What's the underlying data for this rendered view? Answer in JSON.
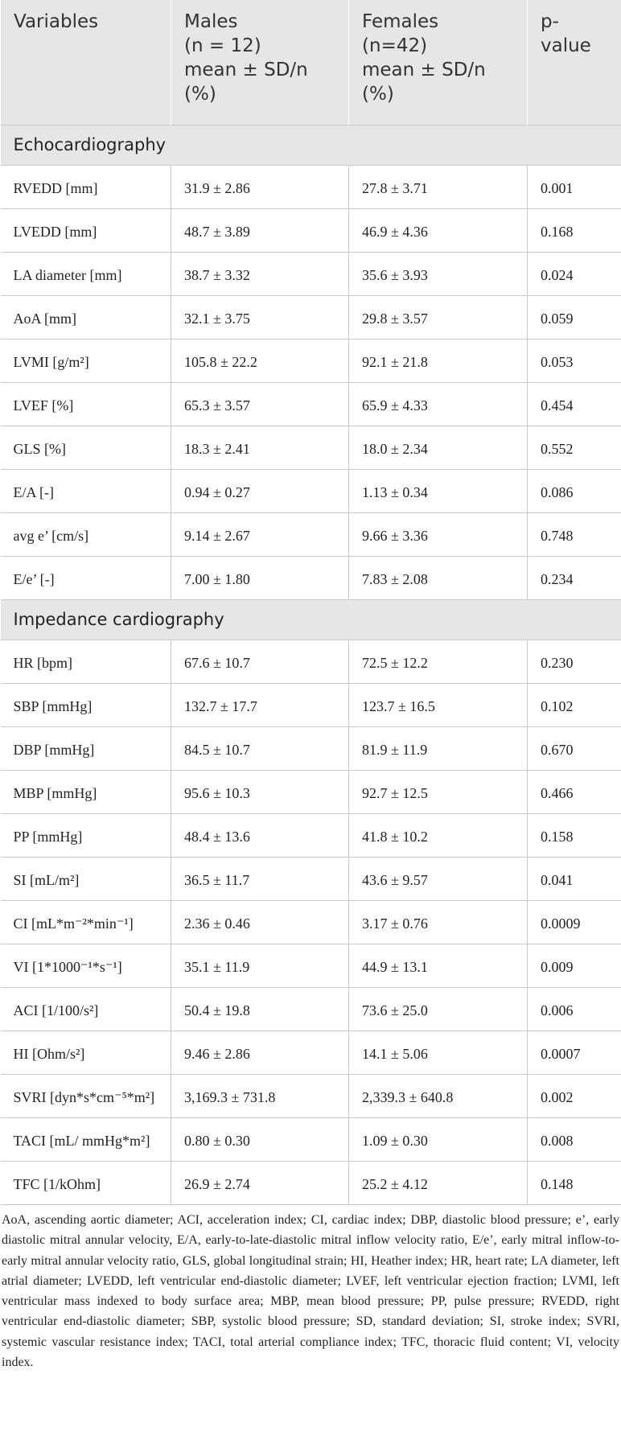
{
  "table": {
    "header": [
      [
        "Variables"
      ],
      [
        "Males",
        "(n = 12)",
        "mean ± SD/n",
        "(%)"
      ],
      [
        "Females",
        "(n=42)",
        "mean ± SD/n",
        "(%)"
      ],
      [
        "p-",
        "value"
      ]
    ],
    "sections": [
      {
        "title": "Echocardiography",
        "rows": [
          [
            "RVEDD [mm]",
            "31.9 ± 2.86",
            "27.8 ± 3.71",
            "0.001"
          ],
          [
            "LVEDD [mm]",
            "48.7 ± 3.89",
            "46.9 ± 4.36",
            "0.168"
          ],
          [
            "LA diameter [mm]",
            "38.7 ± 3.32",
            "35.6 ± 3.93",
            "0.024"
          ],
          [
            "AoA [mm]",
            "32.1 ± 3.75",
            "29.8 ± 3.57",
            "0.059"
          ],
          [
            "LVMI [g/m²]",
            "105.8 ± 22.2",
            "92.1 ± 21.8",
            "0.053"
          ],
          [
            "LVEF [%]",
            "65.3 ± 3.57",
            "65.9 ± 4.33",
            "0.454"
          ],
          [
            "GLS [%]",
            "18.3 ± 2.41",
            "18.0 ± 2.34",
            "0.552"
          ],
          [
            "E/A [-]",
            "0.94 ± 0.27",
            "1.13 ± 0.34",
            "0.086"
          ],
          [
            "avg e’ [cm/s]",
            "9.14 ± 2.67",
            "9.66 ± 3.36",
            "0.748"
          ],
          [
            "E/e’ [-]",
            "7.00 ± 1.80",
            "7.83 ± 2.08",
            "0.234"
          ]
        ]
      },
      {
        "title": "Impedance cardiography",
        "rows": [
          [
            "HR [bpm]",
            "67.6 ± 10.7",
            "72.5 ± 12.2",
            "0.230"
          ],
          [
            "SBP [mmHg]",
            "132.7 ± 17.7",
            "123.7 ± 16.5",
            "0.102"
          ],
          [
            "DBP [mmHg]",
            "84.5 ± 10.7",
            "81.9 ± 11.9",
            "0.670"
          ],
          [
            "MBP [mmHg]",
            "95.6 ± 10.3",
            "92.7 ± 12.5",
            "0.466"
          ],
          [
            "PP [mmHg]",
            "48.4 ± 13.6",
            "41.8 ± 10.2",
            "0.158"
          ],
          [
            "SI [mL/m²]",
            "36.5 ± 11.7",
            "43.6 ± 9.57",
            "0.041"
          ],
          [
            "CI [mL*m⁻²*min⁻¹]",
            "2.36 ± 0.46",
            "3.17 ± 0.76",
            "0.0009"
          ],
          [
            "VI [1*1000⁻¹*s⁻¹]",
            "35.1 ± 11.9",
            "44.9 ± 13.1",
            "0.009"
          ],
          [
            "ACI [1/100/s²]",
            "50.4 ± 19.8",
            "73.6 ± 25.0",
            "0.006"
          ],
          [
            "HI [Ohm/s²]",
            "9.46 ± 2.86",
            "14.1 ± 5.06",
            "0.0007"
          ],
          [
            "SVRI [dyn*s*cm⁻⁵*m²]",
            "3,169.3 ± 731.8",
            "2,339.3 ± 640.8",
            "0.002"
          ],
          [
            "TACI [mL/ mmHg*m²]",
            "0.80 ± 0.30",
            "1.09 ± 0.30",
            "0.008"
          ],
          [
            "TFC [1/kOhm]",
            "26.9 ± 2.74",
            "25.2 ± 4.12",
            "0.148"
          ]
        ]
      }
    ]
  },
  "footnote": "AoA, ascending aortic diameter; ACI, acceleration index; CI, cardiac index; DBP, diastolic blood pressure; e’, early diastolic mitral annular velocity, E/A, early-to-late-diastolic mitral inflow velocity ratio, E/e’, early mitral inflow-to-early mitral annular velocity ratio, GLS, global longitudinal strain; HI, Heather index; HR, heart rate; LA diameter, left atrial diameter; LVEDD, left ventricular end-diastolic diameter; LVEF, left ventricular ejection fraction; LVMI, left ventricular mass indexed to body surface area; MBP, mean blood pressure; PP, pulse pressure; RVEDD, right ventricular end-diastolic diameter; SBP, systolic blood pressure; SD, standard deviation; SI, stroke index; SVRI, systemic vascular resistance index; TACI, total arterial compliance index; TFC, thoracic fluid content; VI, velocity index."
}
